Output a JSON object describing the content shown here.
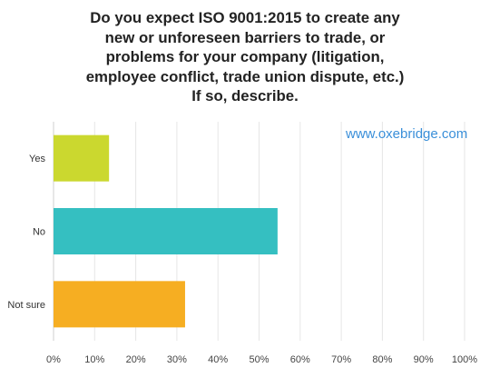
{
  "chart_data": {
    "type": "bar",
    "orientation": "horizontal",
    "title_lines": [
      "Do you expect ISO 9001:2015 to create any",
      "new or unforeseen barriers to trade, or",
      "problems for your company (litigation,",
      "employee conflict, trade union dispute, etc.)",
      "If so, describe."
    ],
    "categories": [
      "Yes",
      "No",
      "Not sure"
    ],
    "values": [
      13.5,
      54.5,
      32
    ],
    "colors": [
      "#cbd82f",
      "#35bfc1",
      "#f6ae22"
    ],
    "x_ticks": [
      "0%",
      "10%",
      "20%",
      "30%",
      "40%",
      "50%",
      "60%",
      "70%",
      "80%",
      "90%",
      "100%"
    ],
    "xlim": [
      0,
      100
    ],
    "grid": "vertical"
  },
  "watermark": "www.oxebridge.com"
}
